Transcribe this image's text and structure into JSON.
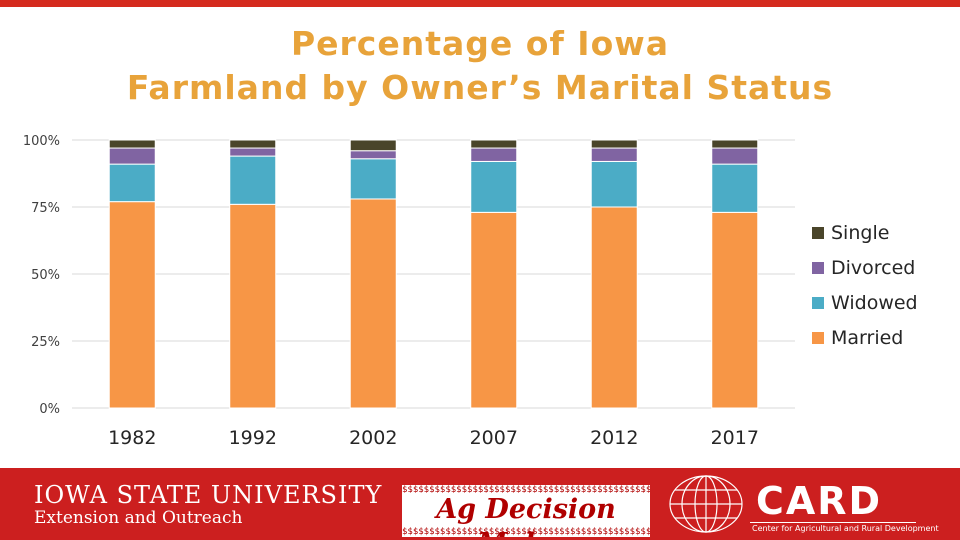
{
  "title_line1": "Percentage of Iowa",
  "title_line2": "Farmland by Owner’s Marital Status",
  "chart_data": {
    "type": "bar",
    "stacked": true,
    "categories": [
      "1982",
      "1992",
      "2002",
      "2007",
      "2012",
      "2017"
    ],
    "series": [
      {
        "name": "Married",
        "color": "#f79646",
        "values": [
          77,
          76,
          78,
          73,
          75,
          73
        ]
      },
      {
        "name": "Widowed",
        "color": "#4bacc6",
        "values": [
          14,
          18,
          15,
          19,
          17,
          18
        ]
      },
      {
        "name": "Divorced",
        "color": "#8064a2",
        "values": [
          6,
          3,
          3,
          5,
          5,
          6
        ]
      },
      {
        "name": "Single",
        "color": "#4a452a",
        "values": [
          3,
          3,
          4,
          3,
          3,
          3
        ]
      }
    ],
    "yticks": [
      "0%",
      "25%",
      "50%",
      "75%",
      "100%"
    ],
    "ylim": [
      0,
      100
    ],
    "grid": true,
    "legend": "right"
  },
  "footer": {
    "isu_name": "IOWA STATE UNIVERSITY",
    "isu_unit": "Extension and Outreach",
    "adm_text": "Ag Decision Maker",
    "adm_pattern": "$$$$$$$$$$$$$$$$$$$$$$$$$$$$$$$$$$$$$$$$$$$$$$$$$",
    "card_name": "CARD",
    "card_full": "Center for Agricultural and Rural Development"
  },
  "colors": {
    "accent": "#d52b1e",
    "title": "#e8a33a",
    "footer": "#cc1f1f"
  }
}
